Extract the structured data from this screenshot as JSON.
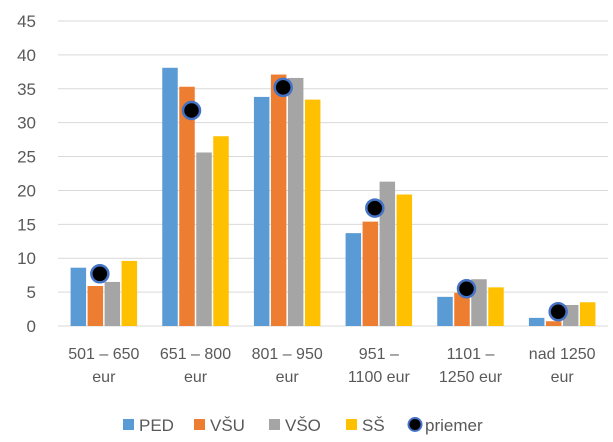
{
  "chart_data": {
    "type": "bar",
    "categories": [
      [
        "501 – 650",
        "eur"
      ],
      [
        "651 – 800",
        "eur"
      ],
      [
        "801 – 950",
        "eur"
      ],
      [
        "951 –",
        "1100 eur"
      ],
      [
        "1101 –",
        "1250 eur"
      ],
      [
        "nad 1250",
        "eur"
      ]
    ],
    "series": [
      {
        "name": "PED",
        "color": "#5B9BD5",
        "values": [
          8.6,
          38.1,
          33.8,
          13.7,
          4.3,
          1.2
        ]
      },
      {
        "name": "VŠU",
        "color": "#ED7D31",
        "values": [
          5.9,
          35.3,
          37.1,
          15.4,
          4.9,
          0.7
        ]
      },
      {
        "name": "VŠO",
        "color": "#A5A5A5",
        "values": [
          6.5,
          25.6,
          36.6,
          21.3,
          6.9,
          3.1
        ]
      },
      {
        "name": "SŠ",
        "color": "#FFC000",
        "values": [
          9.6,
          28.0,
          33.4,
          19.4,
          5.7,
          3.5
        ]
      }
    ],
    "marker_series": {
      "name": "priemer",
      "color": "#000000",
      "edge_color": "#4472C4",
      "values": [
        7.7,
        31.8,
        35.2,
        17.4,
        5.5,
        2.1
      ]
    },
    "ylim": [
      0,
      45
    ],
    "yticks": [
      0,
      5,
      10,
      15,
      20,
      25,
      30,
      35,
      40,
      45
    ],
    "grid": true,
    "legend": "bottom"
  }
}
